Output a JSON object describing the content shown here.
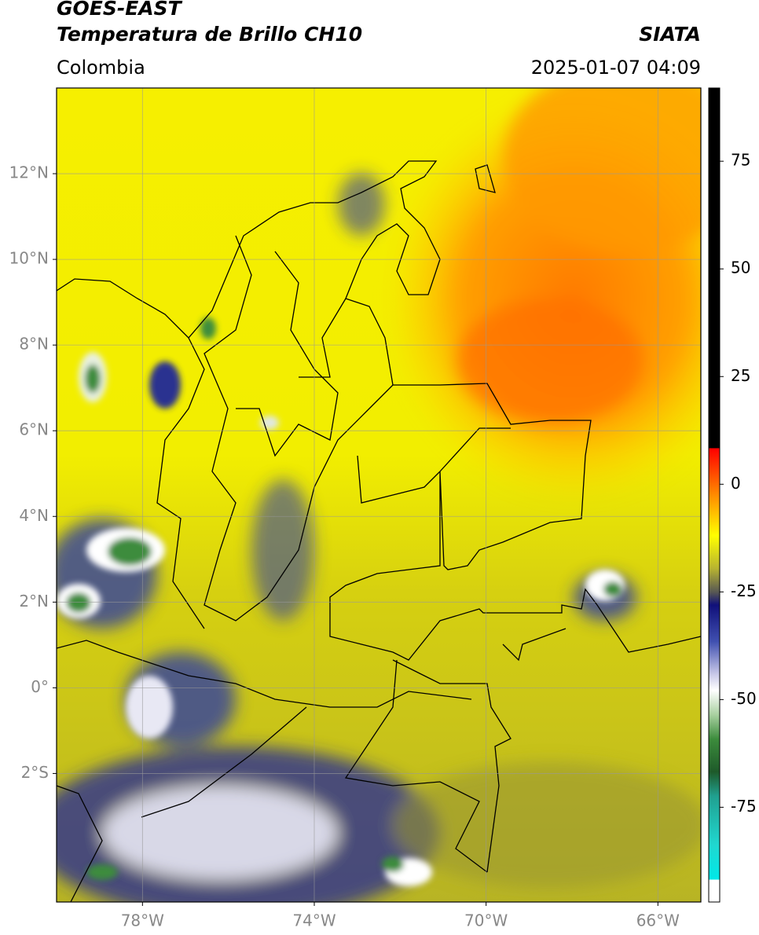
{
  "header": {
    "title": "GOES-EAST",
    "subtitle": "Temperatura de Brillo CH10",
    "region": "Colombia",
    "source": "SIATA",
    "datetime": "2025-01-07 04:09"
  },
  "map": {
    "lon_range": [
      -80,
      -65
    ],
    "lat_range": [
      -5,
      14
    ],
    "lon_ticks": [
      {
        "value": -78,
        "label": "78°W"
      },
      {
        "value": -74,
        "label": "74°W"
      },
      {
        "value": -70,
        "label": "70°W"
      },
      {
        "value": -66,
        "label": "66°W"
      }
    ],
    "lat_ticks": [
      {
        "value": 12,
        "label": "12°N"
      },
      {
        "value": 10,
        "label": "10°N"
      },
      {
        "value": 8,
        "label": "8°N"
      },
      {
        "value": 6,
        "label": "6°N"
      },
      {
        "value": 4,
        "label": "4°N"
      },
      {
        "value": 2,
        "label": "2°N"
      },
      {
        "value": 0,
        "label": "0°"
      },
      {
        "value": -2,
        "label": "2°S"
      }
    ],
    "grid": true
  },
  "colorbar": {
    "range": [
      -97,
      92
    ],
    "ticks": [
      75,
      50,
      25,
      0,
      -25,
      -50,
      -75
    ]
  }
}
